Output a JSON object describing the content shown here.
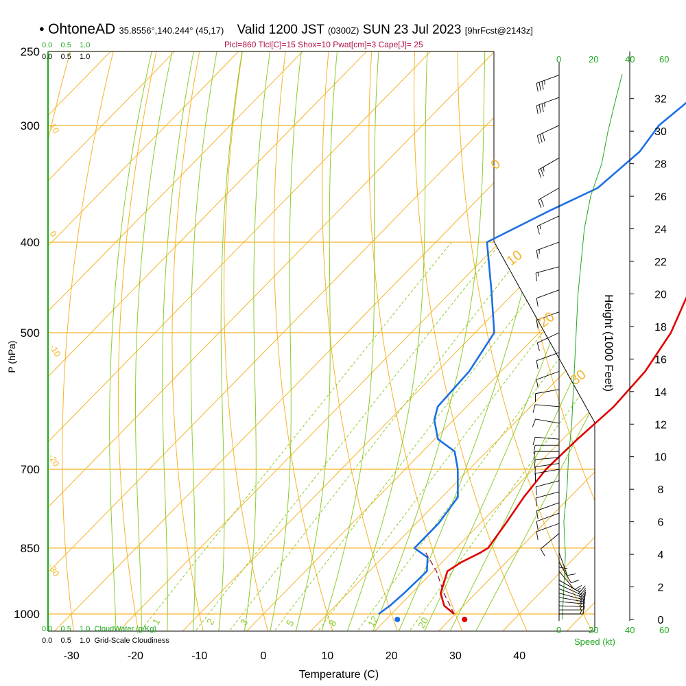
{
  "header": {
    "station_dot": "●",
    "station": "OhtoneAD",
    "coords": "35.8556°,140.244° (45,17)",
    "valid": "Valid 1200 JST",
    "utc": "(0300Z)",
    "date": "SUN 23 Jul 2023",
    "forecast": "[9hrFcst@2143z]",
    "indices": "Plcl=860 Tlcl[C]=15 Shox=10 Pwat[cm]=3 Cape[J]= 25"
  },
  "colors": {
    "isotherm": "#f5b428",
    "dry_adiabat": "#f5b428",
    "moist_adiabat": "#8ccc2a",
    "mixing_ratio": "#8ccc2a",
    "temperature": "#e00000",
    "dewpoint": "#1a6fe6",
    "parcel": "#8b1a4a",
    "cloud": "#1fa81f",
    "wind": "#000000"
  },
  "chart_data": {
    "type": "line",
    "title": "Skew-T log-P sounding",
    "xlabel": "Temperature (C)",
    "ylabel": "P (hPa)",
    "xlim": [
      -35,
      45
    ],
    "ylim": [
      1030,
      250
    ],
    "x_ticks": [
      -30,
      -20,
      -10,
      0,
      10,
      20,
      30,
      40
    ],
    "y_ticks": [
      250,
      300,
      400,
      500,
      700,
      850,
      1000
    ],
    "isotherm_labels": [
      {
        "temp": 10,
        "text": "10"
      },
      {
        "temp": 0,
        "text": "0"
      },
      {
        "temp": -10,
        "text": "-10"
      },
      {
        "temp": -20,
        "text": "-20"
      },
      {
        "temp": -30,
        "text": "-30"
      }
    ],
    "theta_labels": [
      "0",
      "10",
      "20",
      "30"
    ],
    "mixing_ratio_labels": [
      "1",
      "2",
      "3",
      "5",
      "8",
      "12",
      "20"
    ],
    "series": [
      {
        "name": "Temperature",
        "points": [
          [
            1000,
            29.8
          ],
          [
            980,
            27
          ],
          [
            950,
            24.5
          ],
          [
            900,
            22.2
          ],
          [
            880,
            23
          ],
          [
            860,
            24.5
          ],
          [
            850,
            25
          ],
          [
            800,
            24
          ],
          [
            750,
            22.8
          ],
          [
            700,
            22
          ],
          [
            650,
            22.3
          ],
          [
            600,
            23
          ],
          [
            550,
            22.5
          ],
          [
            500,
            20.6
          ],
          [
            450,
            17
          ],
          [
            400,
            12
          ],
          [
            350,
            7
          ],
          [
            300,
            1.5
          ],
          [
            265,
            -3
          ]
        ]
      },
      {
        "name": "Dewpoint",
        "points": [
          [
            1000,
            18
          ],
          [
            980,
            18.5
          ],
          [
            950,
            18.8
          ],
          [
            900,
            19
          ],
          [
            870,
            17
          ],
          [
            850,
            13.5
          ],
          [
            800,
            13.5
          ],
          [
            750,
            12.5
          ],
          [
            700,
            8.2
          ],
          [
            670,
            5
          ],
          [
            650,
            0.5
          ],
          [
            620,
            -3
          ],
          [
            600,
            -4.5
          ],
          [
            550,
            -5
          ],
          [
            500,
            -7
          ],
          [
            450,
            -14
          ],
          [
            400,
            -22
          ],
          [
            370,
            -17
          ],
          [
            350,
            -13
          ],
          [
            320,
            -12
          ],
          [
            300,
            -13
          ],
          [
            280,
            -12
          ],
          [
            265,
            -10
          ]
        ]
      },
      {
        "name": "Parcel",
        "points": [
          [
            1000,
            29.8
          ],
          [
            950,
            25
          ],
          [
            900,
            20.5
          ],
          [
            860,
            16
          ]
        ]
      }
    ],
    "surface_markers": {
      "temperature": 31,
      "dewpoint": 20.5
    },
    "height_axis": {
      "label": "Height (1000 Feet)",
      "ticks": [
        0,
        2,
        4,
        6,
        8,
        10,
        12,
        14,
        16,
        18,
        20,
        22,
        24,
        26,
        28,
        30,
        32
      ]
    },
    "cloud_axis": {
      "top_green": [
        "0.0",
        "0.5",
        "1.0"
      ],
      "top_black": [
        "0.0",
        "0.5",
        "1.0"
      ],
      "bottom_green": [
        "0.0",
        "0.5",
        "1.0"
      ],
      "bottom_black": [
        "0.0",
        "0.5",
        "1.0"
      ],
      "cloud_water_label": "CloudWater (g/Kg)",
      "cloudiness_label": "Grid-Scale Cloudiness"
    },
    "speed_axis": {
      "label": "Speed (kt)",
      "ticks": [
        "0",
        "20",
        "40",
        "60"
      ]
    },
    "wind_speed_profile": [
      [
        0,
        2
      ],
      [
        2,
        3
      ],
      [
        4,
        4
      ],
      [
        6,
        3
      ],
      [
        8,
        5
      ],
      [
        10,
        6
      ],
      [
        12,
        8
      ],
      [
        14,
        9
      ],
      [
        16,
        10
      ],
      [
        18,
        11
      ],
      [
        20,
        12
      ],
      [
        22,
        14
      ],
      [
        24,
        16
      ],
      [
        26,
        20
      ],
      [
        28,
        27
      ],
      [
        30,
        31
      ],
      [
        32,
        36
      ],
      [
        33.5,
        40
      ]
    ],
    "wind_barbs": [
      {
        "p": 1000,
        "dir": 90,
        "spd": 15
      },
      {
        "p": 990,
        "dir": 90,
        "spd": 15
      },
      {
        "p": 980,
        "dir": 92,
        "spd": 15
      },
      {
        "p": 970,
        "dir": 95,
        "spd": 15
      },
      {
        "p": 960,
        "dir": 100,
        "spd": 15
      },
      {
        "p": 950,
        "dir": 105,
        "spd": 15
      },
      {
        "p": 940,
        "dir": 110,
        "spd": 15
      },
      {
        "p": 930,
        "dir": 115,
        "spd": 15
      },
      {
        "p": 920,
        "dir": 120,
        "spd": 15
      },
      {
        "p": 900,
        "dir": 140,
        "spd": 10
      },
      {
        "p": 880,
        "dir": 150,
        "spd": 10
      },
      {
        "p": 860,
        "dir": 160,
        "spd": 10
      },
      {
        "p": 840,
        "dir": 180,
        "spd": 10
      },
      {
        "p": 820,
        "dir": 230,
        "spd": 10
      },
      {
        "p": 800,
        "dir": 250,
        "spd": 10
      },
      {
        "p": 780,
        "dir": 250,
        "spd": 10
      },
      {
        "p": 760,
        "dir": 250,
        "spd": 10
      },
      {
        "p": 740,
        "dir": 255,
        "spd": 10
      },
      {
        "p": 720,
        "dir": 255,
        "spd": 10
      },
      {
        "p": 700,
        "dir": 260,
        "spd": 10
      },
      {
        "p": 690,
        "dir": 262,
        "spd": 10
      },
      {
        "p": 680,
        "dir": 265,
        "spd": 10
      },
      {
        "p": 670,
        "dir": 270,
        "spd": 10
      },
      {
        "p": 660,
        "dir": 270,
        "spd": 10
      },
      {
        "p": 650,
        "dir": 275,
        "spd": 10
      },
      {
        "p": 625,
        "dir": 280,
        "spd": 10
      },
      {
        "p": 600,
        "dir": 275,
        "spd": 10
      },
      {
        "p": 575,
        "dir": 260,
        "spd": 10
      },
      {
        "p": 550,
        "dir": 250,
        "spd": 10
      },
      {
        "p": 525,
        "dir": 250,
        "spd": 10
      },
      {
        "p": 500,
        "dir": 245,
        "spd": 10
      },
      {
        "p": 475,
        "dir": 250,
        "spd": 10
      },
      {
        "p": 450,
        "dir": 250,
        "spd": 10
      },
      {
        "p": 425,
        "dir": 255,
        "spd": 15
      },
      {
        "p": 400,
        "dir": 250,
        "spd": 15
      },
      {
        "p": 375,
        "dir": 245,
        "spd": 15
      },
      {
        "p": 350,
        "dir": 240,
        "spd": 20
      },
      {
        "p": 325,
        "dir": 240,
        "spd": 25
      },
      {
        "p": 300,
        "dir": 245,
        "spd": 30
      },
      {
        "p": 280,
        "dir": 250,
        "spd": 35
      },
      {
        "p": 265,
        "dir": 250,
        "spd": 35
      }
    ]
  }
}
